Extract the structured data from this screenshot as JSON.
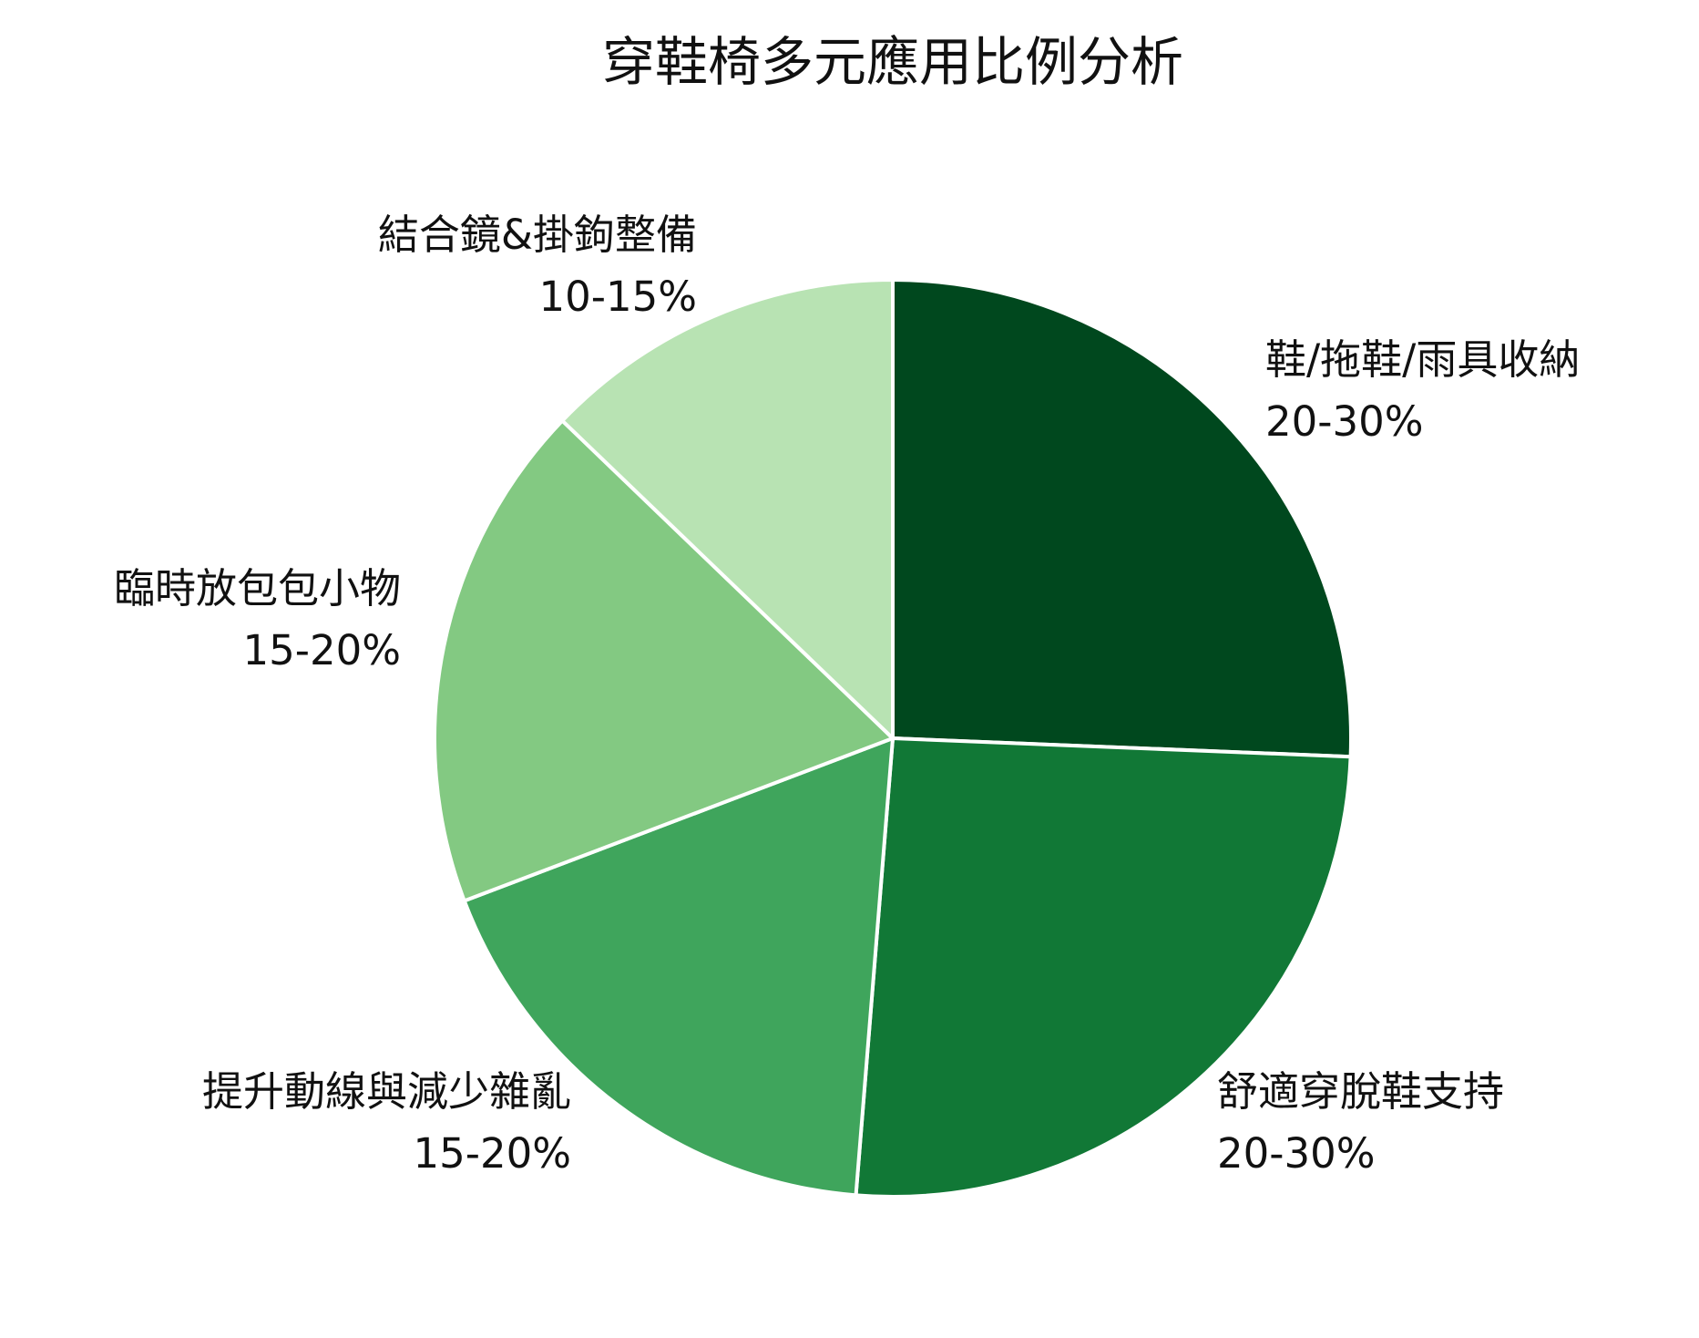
{
  "chart_data": {
    "type": "pie",
    "title": "穿鞋椅多元應用比例分析",
    "categories": [
      "鞋/拖鞋/雨具收納",
      "舒適穿脫鞋支持",
      "提升動線與減少雜亂",
      "臨時放包包小物",
      "結合鏡&掛鉤整備"
    ],
    "values": [
      25,
      25,
      17.5,
      17.5,
      12.5
    ],
    "value_labels": [
      "20-30%",
      "20-30%",
      "15-20%",
      "15-20%",
      "10-15%"
    ],
    "colors": [
      "#00481e",
      "#117836",
      "#3fa55c",
      "#83c982",
      "#b8e3b3"
    ]
  }
}
